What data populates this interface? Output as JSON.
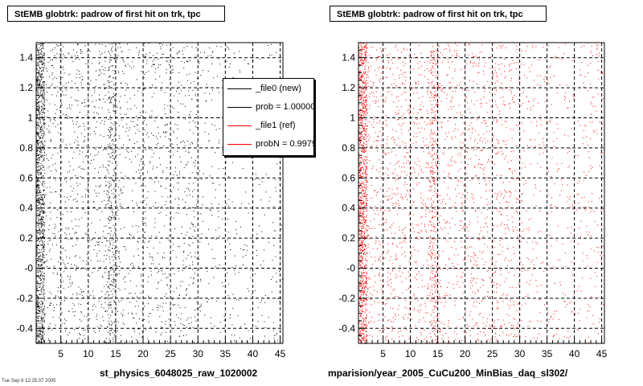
{
  "chart_data": [
    {
      "type": "scatter",
      "title": "StEMB globtrk: padrow of first hit on trk, tpc",
      "xlabel": "st_physics_6048025_raw_1020002",
      "ylabel": "",
      "xlim": [
        0.5,
        45.5
      ],
      "ylim": [
        -0.5,
        1.5
      ],
      "grid": true,
      "grid_style": "dashed",
      "marker_color": "#000000",
      "x_ticks": [
        5,
        10,
        15,
        20,
        25,
        30,
        35,
        40,
        45
      ],
      "y_ticks": [
        -0.4,
        -0.2,
        0,
        0.2,
        0.4,
        0.6,
        0.8,
        1,
        1.2,
        1.4
      ],
      "x_tick_labels": [
        "5",
        "10",
        "15",
        "20",
        "25",
        "30",
        "35",
        "40",
        "45"
      ],
      "y_tick_labels": [
        "-0.4",
        "-0.2",
        "-0",
        "0.2",
        "0.4",
        "0.6",
        "0.8",
        "1",
        "1.2",
        "1.4"
      ],
      "density_by_x": [
        {
          "x_range": [
            0.5,
            2
          ],
          "relative_density": 1.0
        },
        {
          "x_range": [
            2,
            13.5
          ],
          "relative_density": 0.08
        },
        {
          "x_range": [
            13.5,
            15
          ],
          "relative_density": 0.35
        },
        {
          "x_range": [
            15,
            30
          ],
          "relative_density": 0.07
        },
        {
          "x_range": [
            30,
            45.5
          ],
          "relative_density": 0.03
        }
      ],
      "legend": {
        "placement": "top-right",
        "entries": [
          {
            "label": "_file0 (new)",
            "color": "#000000"
          },
          {
            "label": "prob = 1.000000",
            "color": "#000000"
          },
          {
            "label": "_file1 (ref)",
            "color": "#ff0000"
          },
          {
            "label": "probN = 0.997980",
            "color": "#ff0000"
          }
        ]
      }
    },
    {
      "type": "scatter",
      "title": "StEMB globtrk: padrow of first hit on trk, tpc",
      "xlabel": "mparision/year_2005_CuCu200_MinBias_daq_sl302/",
      "ylabel": "",
      "xlim": [
        0.5,
        45.5
      ],
      "ylim": [
        -0.5,
        1.5
      ],
      "grid": true,
      "grid_style": "dashed",
      "marker_color": "#ff0000",
      "x_ticks": [
        5,
        10,
        15,
        20,
        25,
        30,
        35,
        40,
        45
      ],
      "y_ticks": [
        -0.4,
        -0.2,
        0,
        0.2,
        0.4,
        0.6,
        0.8,
        1,
        1.2,
        1.4
      ],
      "x_tick_labels": [
        "5",
        "10",
        "15",
        "20",
        "25",
        "30",
        "35",
        "40",
        "45"
      ],
      "y_tick_labels": [
        "-0.4",
        "-0.2",
        "-0",
        "0.2",
        "0.4",
        "0.6",
        "0.8",
        "1",
        "1.2",
        "1.4"
      ],
      "density_by_x": [
        {
          "x_range": [
            0.5,
            2
          ],
          "relative_density": 1.0
        },
        {
          "x_range": [
            2,
            13.5
          ],
          "relative_density": 0.09
        },
        {
          "x_range": [
            13.5,
            15
          ],
          "relative_density": 0.35
        },
        {
          "x_range": [
            15,
            30
          ],
          "relative_density": 0.08
        },
        {
          "x_range": [
            30,
            45.5
          ],
          "relative_density": 0.04
        }
      ]
    }
  ],
  "footer": "Tue Sep 6 12:25:07 2005"
}
